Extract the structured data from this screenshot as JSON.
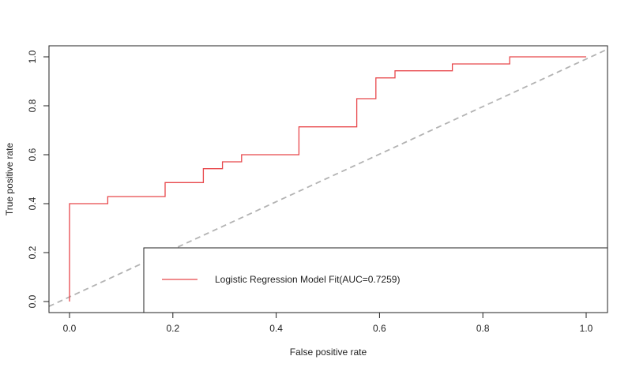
{
  "chart_data": {
    "type": "line",
    "title": "",
    "xlabel": "False positive rate",
    "ylabel": "True positive rate",
    "xlim": [
      0.0,
      1.0
    ],
    "ylim": [
      0.0,
      1.0
    ],
    "x_ticks": [
      "0.0",
      "0.2",
      "0.4",
      "0.6",
      "0.8",
      "1.0"
    ],
    "y_ticks": [
      "0.0",
      "0.2",
      "0.4",
      "0.6",
      "0.8",
      "1.0"
    ],
    "grid": false,
    "legend_position": "bottom-right",
    "series": [
      {
        "name": "Logistic Regression Model Fit(AUC=0.7259)",
        "color": "#e8474b",
        "style": "step",
        "points": [
          [
            0.0,
            0.0
          ],
          [
            0.0,
            0.4
          ],
          [
            0.074,
            0.4
          ],
          [
            0.074,
            0.429
          ],
          [
            0.185,
            0.429
          ],
          [
            0.185,
            0.486
          ],
          [
            0.259,
            0.486
          ],
          [
            0.259,
            0.543
          ],
          [
            0.296,
            0.543
          ],
          [
            0.296,
            0.571
          ],
          [
            0.333,
            0.571
          ],
          [
            0.333,
            0.6
          ],
          [
            0.444,
            0.6
          ],
          [
            0.444,
            0.714
          ],
          [
            0.556,
            0.714
          ],
          [
            0.556,
            0.829
          ],
          [
            0.593,
            0.829
          ],
          [
            0.593,
            0.914
          ],
          [
            0.63,
            0.914
          ],
          [
            0.63,
            0.943
          ],
          [
            0.741,
            0.943
          ],
          [
            0.741,
            0.971
          ],
          [
            0.852,
            0.971
          ],
          [
            0.852,
            1.0
          ],
          [
            1.0,
            1.0
          ]
        ]
      },
      {
        "name": "",
        "color": "#b3b3b3",
        "style": "dashed",
        "points": [
          [
            -0.04,
            -0.02
          ],
          [
            1.04,
            1.03
          ]
        ]
      }
    ]
  }
}
